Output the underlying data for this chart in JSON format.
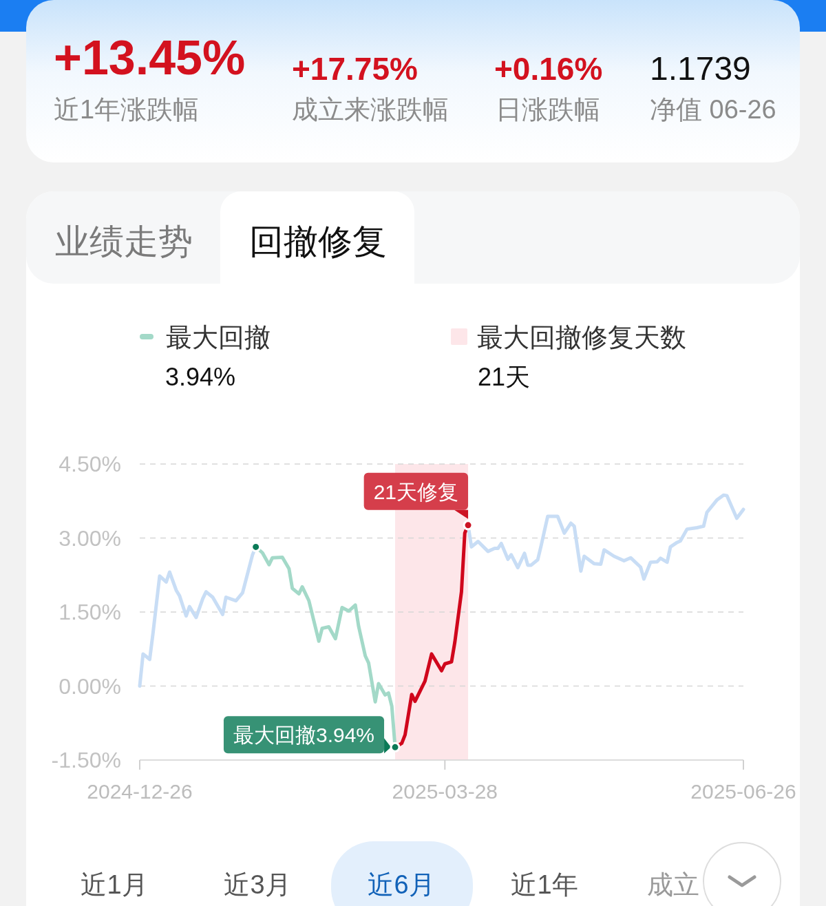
{
  "chart_data": {
    "type": "line",
    "xlim": [
      "2024-12-26",
      "2025-06-26"
    ],
    "xticks": [
      "2024-12-26",
      "2025-03-28",
      "2025-06-26"
    ],
    "ylim": [
      -1.5,
      4.5
    ],
    "yticks": [
      {
        "value": -1.5,
        "label": "-1.50%"
      },
      {
        "value": 0,
        "label": "0.00%"
      },
      {
        "value": 1.5,
        "label": "1.50%"
      },
      {
        "value": 3,
        "label": "3.00%"
      },
      {
        "value": 4.5,
        "label": "4.50%"
      }
    ],
    "grid": "y",
    "legend": "top",
    "series": [
      {
        "color": "#c8ddf5",
        "x": [
          "2024-12-26",
          "2024-12-27",
          "2024-12-29",
          "2024-12-30",
          "2025-01-01",
          "2025-01-03",
          "2025-01-04",
          "2025-01-06",
          "2025-01-07",
          "2025-01-09",
          "2025-01-10",
          "2025-01-12",
          "2025-01-14",
          "2025-01-15",
          "2025-01-17",
          "2025-01-20",
          "2025-01-21",
          "2025-01-24",
          "2025-01-26",
          "2025-01-29",
          "2025-01-30"
        ],
        "values": [
          0.0,
          0.65,
          0.54,
          1.07,
          2.23,
          2.11,
          2.31,
          1.94,
          1.83,
          1.42,
          1.61,
          1.39,
          1.77,
          1.91,
          1.8,
          1.45,
          1.8,
          1.73,
          1.89,
          2.66,
          2.82
        ]
      },
      {
        "name": "最大回撤",
        "color": "#a3d9c8",
        "x": [
          "2025-01-30",
          "2025-02-01",
          "2025-02-03",
          "2025-02-04",
          "2025-02-07",
          "2025-02-09",
          "2025-02-10",
          "2025-02-12",
          "2025-02-13",
          "2025-02-15",
          "2025-02-18",
          "2025-02-19",
          "2025-02-21",
          "2025-02-23",
          "2025-02-25",
          "2025-02-27",
          "2025-03-01",
          "2025-03-02",
          "2025-03-04",
          "2025-03-05",
          "2025-03-07",
          "2025-03-08",
          "2025-03-10",
          "2025-03-11",
          "2025-03-12",
          "2025-03-13"
        ],
        "values": [
          2.82,
          2.7,
          2.46,
          2.6,
          2.61,
          2.38,
          1.98,
          1.87,
          2.01,
          1.73,
          0.91,
          1.17,
          1.2,
          0.96,
          1.59,
          1.52,
          1.64,
          1.21,
          0.61,
          0.47,
          -0.32,
          0.05,
          -0.18,
          -0.14,
          -0.41,
          -1.24
        ]
      },
      {
        "color": "#d0061c",
        "x": [
          "2025-03-13",
          "2025-03-15",
          "2025-03-16",
          "2025-03-18",
          "2025-03-19",
          "2025-03-22",
          "2025-03-24",
          "2025-03-27",
          "2025-03-28",
          "2025-03-30",
          "2025-03-31",
          "2025-04-02",
          "2025-04-03",
          "2025-04-04"
        ],
        "values": [
          -1.24,
          -1.16,
          -0.99,
          -0.17,
          -0.31,
          0.1,
          0.65,
          0.31,
          0.45,
          0.49,
          0.89,
          1.91,
          3.1,
          3.26
        ]
      },
      {
        "color": "#c8ddf5",
        "x": [
          "2025-04-04",
          "2025-04-05",
          "2025-04-07",
          "2025-04-10",
          "2025-04-12",
          "2025-04-13",
          "2025-04-14",
          "2025-04-16",
          "2025-04-17",
          "2025-04-19",
          "2025-04-21",
          "2025-04-22",
          "2025-04-23",
          "2025-04-25",
          "2025-04-26",
          "2025-04-28",
          "2025-05-01",
          "2025-05-03",
          "2025-05-05",
          "2025-05-06",
          "2025-05-08",
          "2025-05-09",
          "2025-05-12",
          "2025-05-14",
          "2025-05-15",
          "2025-05-18",
          "2025-05-21",
          "2025-05-23",
          "2025-05-26",
          "2025-05-27",
          "2025-05-29",
          "2025-05-31",
          "2025-06-01",
          "2025-06-03",
          "2025-06-04",
          "2025-06-06",
          "2025-06-07",
          "2025-06-09",
          "2025-06-12",
          "2025-06-14",
          "2025-06-15",
          "2025-06-18",
          "2025-06-20",
          "2025-06-21",
          "2025-06-24",
          "2025-06-26"
        ],
        "values": [
          3.26,
          2.82,
          2.93,
          2.73,
          2.79,
          2.79,
          2.89,
          2.57,
          2.66,
          2.4,
          2.69,
          2.45,
          2.45,
          2.56,
          2.84,
          3.44,
          3.44,
          3.1,
          3.3,
          3.24,
          2.33,
          2.63,
          2.48,
          2.47,
          2.76,
          2.63,
          2.54,
          2.6,
          2.41,
          2.17,
          2.51,
          2.52,
          2.59,
          2.51,
          2.82,
          2.91,
          2.94,
          3.18,
          3.21,
          3.24,
          3.52,
          3.77,
          3.87,
          3.86,
          3.4,
          3.58
        ]
      },
      {
        "type": "scatter",
        "x": [
          "2025-01-30",
          "2025-03-13",
          "2025-04-04"
        ],
        "values": [
          2.82,
          -1.24,
          3.26
        ],
        "colors": [
          "#0b7a57",
          "#0b7a57",
          "#cc1424"
        ]
      }
    ],
    "bands": [
      {
        "axis": "x",
        "from": "2025-03-13",
        "to": "2025-04-04",
        "label": "最大回撤修复天数",
        "color": "#fde6e9"
      }
    ],
    "annotations": [
      "+13.45%",
      "近1年涨跌幅",
      "+17.75%",
      "成立来涨跌幅",
      "+0.16%",
      "日涨跌幅",
      "1.1739",
      "净值 06-26",
      "业绩走势",
      "回撤修复",
      "3.94%",
      "21天",
      "近1月",
      "近3月",
      "近6月",
      "近1年",
      "成立",
      {
        "text": "最大回撤3.94%",
        "x": "2025-03-13",
        "y": -1.24
      },
      {
        "text": "21天修复",
        "x": "2025-04-04",
        "y": 3.26
      }
    ]
  }
}
